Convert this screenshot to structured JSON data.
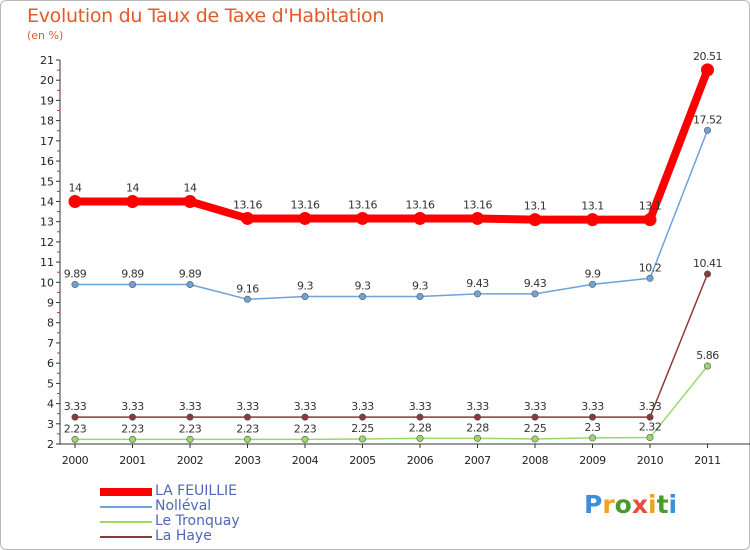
{
  "chart_data": {
    "type": "line",
    "title": "Evolution du Taux de Taxe d'Habitation",
    "subtitle": "(en %)",
    "xlabel": "",
    "ylabel": "",
    "categories": [
      "2000",
      "2001",
      "2002",
      "2003",
      "2004",
      "2005",
      "2006",
      "2007",
      "2008",
      "2009",
      "2010",
      "2011"
    ],
    "ylim": [
      2,
      21
    ],
    "yticks": [
      2,
      3,
      4,
      5,
      6,
      7,
      8,
      9,
      10,
      11,
      12,
      13,
      14,
      15,
      16,
      17,
      18,
      19,
      20,
      21
    ],
    "grid": false,
    "legend_position": "bottom-left",
    "series": [
      {
        "name": "LA FEUILLIE",
        "color": "#ff0000",
        "emphasis": "thick",
        "values": [
          14,
          14,
          14,
          13.16,
          13.16,
          13.16,
          13.16,
          13.16,
          13.1,
          13.1,
          13.1,
          20.51
        ],
        "labels": [
          "14",
          "14",
          "14",
          "13.16",
          "13.16",
          "13.16",
          "13.16",
          "13.16",
          "13.1",
          "13.1",
          "13.1",
          "20.51"
        ]
      },
      {
        "name": "Nolléval",
        "color": "#6fa2d6",
        "emphasis": "thin",
        "values": [
          9.89,
          9.89,
          9.89,
          9.16,
          9.3,
          9.3,
          9.3,
          9.43,
          9.43,
          9.9,
          10.2,
          17.52
        ],
        "labels": [
          "9.89",
          "9.89",
          "9.89",
          "9.16",
          "9.3",
          "9.3",
          "9.3",
          "9.43",
          "9.43",
          "9.9",
          "10.2",
          "17.52"
        ]
      },
      {
        "name": "Le Tronquay",
        "color": "#9ad86a",
        "emphasis": "thin",
        "values": [
          2.23,
          2.23,
          2.23,
          2.23,
          2.23,
          2.25,
          2.28,
          2.28,
          2.25,
          2.3,
          2.32,
          5.86
        ],
        "labels": [
          "2.23",
          "2.23",
          "2.23",
          "2.23",
          "2.23",
          "2.25",
          "2.28",
          "2.28",
          "2.25",
          "2.3",
          "2.32",
          "5.86"
        ]
      },
      {
        "name": "La Haye",
        "color": "#8b3a3a",
        "emphasis": "thin",
        "values": [
          3.33,
          3.33,
          3.33,
          3.33,
          3.33,
          3.33,
          3.33,
          3.33,
          3.33,
          3.33,
          3.33,
          10.41
        ],
        "labels": [
          "3.33",
          "3.33",
          "3.33",
          "3.33",
          "3.33",
          "3.33",
          "3.33",
          "3.33",
          "3.33",
          "3.33",
          "3.33",
          "10.41"
        ]
      }
    ]
  },
  "logo": {
    "letters": [
      "P",
      "r",
      "o",
      "x",
      "i",
      "t",
      "i"
    ],
    "colors": [
      "#3f8fd6",
      "#f0a21e",
      "#4a9a2e",
      "#e74c3c",
      "#f0a21e",
      "#4a9a2e",
      "#3f8fd6"
    ]
  }
}
